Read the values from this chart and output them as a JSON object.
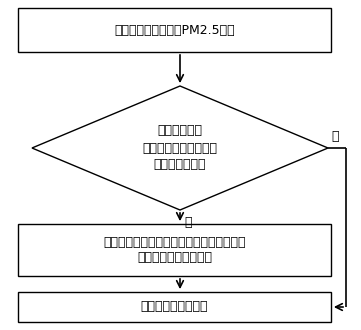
{
  "box1_text": "以当前校正系数进行PM2.5测量",
  "diamond_line1": "判断测量结果",
  "diamond_line2": "是否属于当前校正系数",
  "diamond_line3": "所对应的子量程",
  "box2_line1": "调整校正系数为该测量结果对应子量程内的",
  "box2_line2": "校正系数，并重新测量",
  "box3_text": "保存并显示测量结果",
  "yes_label": "是",
  "no_label": "否",
  "bg_color": "#ffffff",
  "box_edge_color": "#000000",
  "arrow_color": "#000000",
  "text_color": "#000000",
  "box_fill": "#ffffff",
  "diamond_fill": "#ffffff",
  "font_size": 9,
  "label_font_size": 9
}
